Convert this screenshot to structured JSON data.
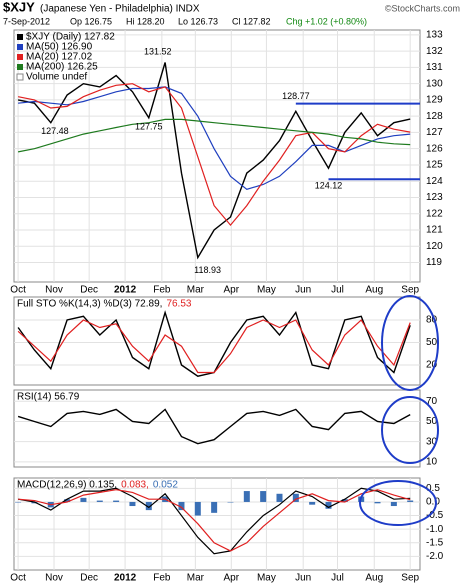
{
  "header": {
    "symbol": "$XJY",
    "name": "(Japanese Yen - Philadelphia) INDX",
    "watermark": "©StockCharts.com",
    "date": "7-Sep-2012",
    "open": "Op 126.75",
    "high": "Hi 128.20",
    "low": "Lo 126.73",
    "close": "Cl 127.82",
    "change": "Chg +1.02 (+0.80%)"
  },
  "chart_data": [
    {
      "type": "line",
      "grid": true,
      "x": [
        0,
        2,
        4,
        6,
        8,
        10,
        12,
        14,
        16,
        18,
        20,
        22,
        24,
        26,
        28,
        30,
        32,
        34,
        36,
        38,
        40,
        42,
        44,
        46,
        48
      ],
      "xlim": [
        -0.5,
        49.2
      ],
      "xticks": [
        {
          "value": 0,
          "label": "Oct"
        },
        {
          "value": 4.4,
          "label": "Nov"
        },
        {
          "value": 8.7,
          "label": "Dec"
        },
        {
          "value": 13.1,
          "label": "2012"
        },
        {
          "value": 17.6,
          "label": "Feb"
        },
        {
          "value": 21.7,
          "label": "Mar"
        },
        {
          "value": 26.1,
          "label": "Apr"
        },
        {
          "value": 30.4,
          "label": "May"
        },
        {
          "value": 34.9,
          "label": "Jun"
        },
        {
          "value": 39.1,
          "label": "Jul"
        },
        {
          "value": 43.6,
          "label": "Aug"
        },
        {
          "value": 48,
          "label": "Sep"
        }
      ],
      "ylim": [
        117.8,
        133.3
      ],
      "yticks": [
        119,
        120,
        121,
        122,
        123,
        124,
        125,
        126,
        127,
        128,
        129,
        130,
        131,
        132,
        133
      ],
      "series": [
        {
          "name": "$XJY (Daily) 127.82",
          "color": "#000000",
          "values": [
            129.0,
            128.8,
            127.6,
            129.3,
            130.0,
            129.8,
            130.5,
            129.5,
            127.9,
            131.3,
            124.5,
            119.3,
            121.0,
            121.8,
            124.5,
            125.3,
            126.5,
            128.3,
            126.5,
            124.8,
            127.0,
            128.2,
            126.8,
            127.6,
            127.82
          ]
        },
        {
          "name": "MA(50) 126.90",
          "color": "#1f3fbf",
          "values": [
            128.8,
            128.9,
            128.8,
            128.7,
            128.9,
            129.2,
            129.5,
            129.7,
            129.7,
            129.8,
            129.4,
            128.0,
            126.0,
            124.3,
            123.5,
            123.8,
            124.3,
            125.2,
            126.2,
            126.2,
            125.8,
            126.2,
            126.6,
            126.8,
            126.9
          ]
        },
        {
          "name": "MA(20) 127.02",
          "color": "#e02020",
          "values": [
            129.2,
            129.0,
            128.5,
            128.6,
            129.2,
            129.6,
            129.9,
            130.0,
            129.5,
            129.8,
            128.5,
            125.5,
            122.5,
            121.3,
            122.5,
            124.0,
            125.3,
            126.8,
            127.0,
            126.0,
            125.8,
            126.8,
            127.5,
            127.2,
            127.02
          ]
        },
        {
          "name": "MA(200) 126.25",
          "color": "#1e7a1e",
          "values": [
            125.8,
            126.0,
            126.3,
            126.6,
            126.9,
            127.1,
            127.3,
            127.5,
            127.6,
            127.8,
            127.8,
            127.7,
            127.6,
            127.5,
            127.4,
            127.3,
            127.2,
            127.1,
            127.0,
            126.9,
            126.7,
            126.6,
            126.4,
            126.3,
            126.25
          ]
        }
      ],
      "legend_extra": "Volume undef",
      "annotations": [
        {
          "x": 4.5,
          "y": 127.48,
          "position": "below"
        },
        {
          "x": 17.1,
          "y": 131.52,
          "position": "above"
        },
        {
          "x": 16,
          "y": 127.75,
          "position": "below"
        },
        {
          "x": 23.2,
          "y": 118.93,
          "position": "below"
        },
        {
          "x": 34,
          "y": 128.77,
          "position": "above",
          "line": true
        },
        {
          "x": 38,
          "y": 124.12,
          "position": "below",
          "line": true
        }
      ]
    },
    {
      "type": "line",
      "grid": true,
      "title": "Full STO %K(14,3) %D(3) 72.89,",
      "title_extra": "76.53",
      "x": [
        0,
        2,
        4,
        6,
        8,
        10,
        12,
        14,
        16,
        18,
        20,
        22,
        24,
        26,
        28,
        30,
        32,
        34,
        36,
        38,
        40,
        42,
        44,
        46,
        48
      ],
      "xlim": [
        -0.5,
        49.2
      ],
      "ylim": [
        -6.7,
        110.7
      ],
      "yticks": [
        20,
        50,
        80
      ],
      "series": [
        {
          "color": "#000000",
          "values": [
            70,
            40,
            15,
            80,
            85,
            60,
            80,
            30,
            15,
            90,
            20,
            5,
            10,
            50,
            80,
            85,
            60,
            90,
            20,
            15,
            80,
            85,
            30,
            10,
            72.89
          ]
        },
        {
          "color": "#e02020",
          "values": [
            65,
            45,
            25,
            60,
            80,
            70,
            75,
            45,
            25,
            60,
            45,
            10,
            10,
            35,
            70,
            80,
            70,
            80,
            40,
            20,
            60,
            80,
            45,
            20,
            76.53
          ]
        }
      ]
    },
    {
      "type": "line",
      "grid": true,
      "title": "RSI(14) 56.79",
      "x": [
        0,
        2,
        4,
        6,
        8,
        10,
        12,
        14,
        16,
        18,
        20,
        22,
        24,
        26,
        28,
        30,
        32,
        34,
        36,
        38,
        40,
        42,
        44,
        46,
        48
      ],
      "xlim": [
        -0.5,
        49.2
      ],
      "ylim": [
        4.9,
        81.2
      ],
      "yticks": [
        10,
        30,
        50,
        70
      ],
      "series": [
        {
          "color": "#000000",
          "values": [
            55,
            50,
            45,
            58,
            60,
            57,
            62,
            50,
            48,
            62,
            35,
            28,
            32,
            45,
            58,
            60,
            56,
            62,
            45,
            42,
            58,
            60,
            50,
            48,
            56.79
          ]
        }
      ]
    },
    {
      "type": "line",
      "grid": true,
      "title": "MACD(12,26,9) 0.135,",
      "title_extra": "0.083,",
      "title_extra2": "0.052",
      "x": [
        0,
        2,
        4,
        6,
        8,
        10,
        12,
        14,
        16,
        18,
        20,
        22,
        24,
        26,
        28,
        30,
        32,
        34,
        36,
        38,
        40,
        42,
        44,
        46,
        48
      ],
      "xlim": [
        -0.5,
        49.2
      ],
      "xticks": [
        {
          "value": 0,
          "label": "Oct"
        },
        {
          "value": 4.4,
          "label": "Nov"
        },
        {
          "value": 8.7,
          "label": "Dec"
        },
        {
          "value": 13.1,
          "label": "2012"
        },
        {
          "value": 17.6,
          "label": "Feb"
        },
        {
          "value": 21.7,
          "label": "Mar"
        },
        {
          "value": 26.1,
          "label": "Apr"
        },
        {
          "value": 30.4,
          "label": "May"
        },
        {
          "value": 34.9,
          "label": "Jun"
        },
        {
          "value": 39.1,
          "label": "Jul"
        },
        {
          "value": 43.6,
          "label": "Aug"
        },
        {
          "value": 48,
          "label": "Sep"
        }
      ],
      "ylim": [
        -2.5,
        0.88
      ],
      "yticks": [
        0.5,
        {
          "value": 0,
          "label": "0.0"
        },
        -0.5,
        {
          "value": -1,
          "label": "-1.0"
        },
        -1.5,
        {
          "value": -2,
          "label": "-2.0"
        }
      ],
      "series": [
        {
          "color": "#3a6fb5",
          "style": "bar",
          "values": [
            0,
            -0.05,
            -0.2,
            0.1,
            0.15,
            0.05,
            0.05,
            -0.15,
            -0.3,
            0.2,
            -0.3,
            -0.5,
            -0.4,
            0,
            0.4,
            0.4,
            0.3,
            0.3,
            -0.1,
            -0.25,
            0.1,
            0.2,
            -0.05,
            -0.15,
            0.052
          ]
        },
        {
          "color": "#000000",
          "values": [
            0.1,
            0,
            -0.3,
            0.1,
            0.4,
            0.4,
            0.5,
            0.2,
            -0.2,
            0.3,
            -0.5,
            -1.3,
            -1.9,
            -1.8,
            -1.1,
            -0.5,
            -0.1,
            0.4,
            0.2,
            -0.2,
            0.1,
            0.5,
            0.4,
            0.1,
            0.135
          ]
        },
        {
          "color": "#e02020",
          "values": [
            0.1,
            0.05,
            -0.1,
            0,
            0.25,
            0.35,
            0.45,
            0.35,
            0.1,
            0.1,
            -0.2,
            -0.8,
            -1.5,
            -1.8,
            -1.5,
            -0.9,
            -0.4,
            0.1,
            0.3,
            0.05,
            0,
            0.3,
            0.45,
            0.25,
            0.083
          ]
        }
      ]
    }
  ]
}
